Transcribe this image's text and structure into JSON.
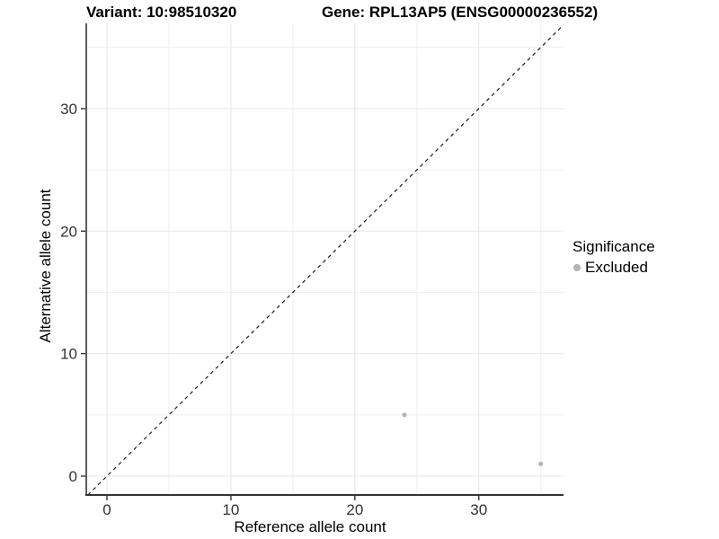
{
  "titles": {
    "left": "Variant: 10:98510320",
    "right": "Gene: RPL13AP5 (ENSG00000236552)"
  },
  "axes": {
    "x_label": "Reference allele count",
    "y_label": "Alternative allele count"
  },
  "legend": {
    "title": "Significance",
    "items": [
      {
        "label": "Excluded",
        "color": "#b3b3b3"
      }
    ]
  },
  "colors": {
    "grid_major": "#e6e6e6",
    "grid_minor": "#f0f0f0",
    "axis_line": "#333333",
    "tick_label": "#333333",
    "reference_line": "#1a1a1a"
  },
  "chart_data": {
    "type": "scatter",
    "title": "Variant: 10:98510320 / Gene: RPL13AP5 (ENSG00000236552)",
    "xlabel": "Reference allele count",
    "ylabel": "Alternative allele count",
    "xlim": [
      -1.667,
      36.833
    ],
    "ylim": [
      -1.54,
      36.96
    ],
    "x_ticks": [
      0,
      10,
      20,
      30
    ],
    "y_ticks": [
      0,
      10,
      20,
      30
    ],
    "x_minor_gridlines": [
      5,
      15,
      25,
      35
    ],
    "y_minor_gridlines": [
      5,
      15,
      25,
      35
    ],
    "grid": true,
    "legend_position": "right",
    "reference_line": {
      "slope": 1,
      "intercept": 0,
      "style": "dashed"
    },
    "series": [
      {
        "name": "Excluded",
        "color": "#b3b3b3",
        "point_radius": 2.5,
        "points": [
          {
            "x": 24,
            "y": 5
          },
          {
            "x": 35,
            "y": 1
          }
        ]
      }
    ]
  }
}
